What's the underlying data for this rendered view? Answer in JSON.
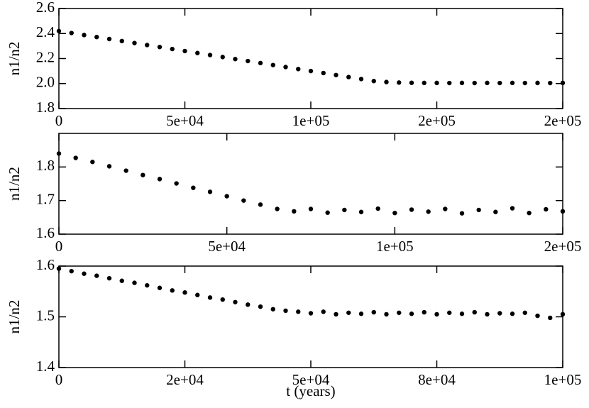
{
  "chart_data": [
    {
      "type": "scatter",
      "ylabel": "n1/n2",
      "color": "#000000",
      "xlim": [
        0,
        200000
      ],
      "xticks": [
        0,
        {
          "value": 50000,
          "label": "5e+04"
        },
        {
          "value": 100000,
          "label": "1e+05"
        },
        {
          "value": 150000,
          "label": "2e+05"
        },
        {
          "value": 200000,
          "label": "2e+05"
        }
      ],
      "ylim": [
        1.8,
        2.6
      ],
      "yticks": [
        1.8,
        {
          "value": 2,
          "label": "2.0"
        },
        2.2,
        2.4,
        2.6
      ],
      "x": [
        0,
        5000,
        10000,
        15000,
        20000,
        25000,
        30000,
        35000,
        40000,
        45000,
        50000,
        55000,
        60000,
        65000,
        70000,
        75000,
        80000,
        85000,
        90000,
        95000,
        100000,
        105000,
        110000,
        115000,
        120000,
        125000,
        130000,
        135000,
        140000,
        145000,
        150000,
        155000,
        160000,
        165000,
        170000,
        175000,
        180000,
        185000,
        190000,
        195000,
        200000
      ],
      "y": [
        2.42,
        2.404,
        2.388,
        2.372,
        2.356,
        2.34,
        2.324,
        2.308,
        2.292,
        2.276,
        2.26,
        2.244,
        2.228,
        2.212,
        2.196,
        2.18,
        2.164,
        2.148,
        2.132,
        2.116,
        2.1,
        2.084,
        2.068,
        2.052,
        2.036,
        2.02,
        2.012,
        2.008,
        2.006,
        2.005,
        2.005,
        2.004,
        2.005,
        2.004,
        2.005,
        2.004,
        2.005,
        2.004,
        2.005,
        2.004,
        2.005
      ]
    },
    {
      "type": "scatter",
      "ylabel": "n1/n2",
      "color": "#000000",
      "xlim": [
        0,
        150000
      ],
      "xticks": [
        0,
        {
          "value": 50000,
          "label": "5e+04"
        },
        {
          "value": 100000,
          "label": "1e+05"
        },
        {
          "value": 150000,
          "label": "2e+05"
        }
      ],
      "ylim": [
        1.6,
        1.9
      ],
      "yticks": [
        1.6,
        1.7,
        1.8
      ],
      "x": [
        0,
        5000,
        10000,
        15000,
        20000,
        25000,
        30000,
        35000,
        40000,
        45000,
        50000,
        55000,
        60000,
        65000,
        70000,
        75000,
        80000,
        85000,
        90000,
        95000,
        100000,
        105000,
        110000,
        115000,
        120000,
        125000,
        130000,
        135000,
        140000,
        145000,
        150000
      ],
      "y": [
        1.84,
        1.827,
        1.815,
        1.802,
        1.789,
        1.776,
        1.764,
        1.751,
        1.738,
        1.726,
        1.713,
        1.7,
        1.688,
        1.675,
        1.668,
        1.675,
        1.664,
        1.672,
        1.666,
        1.676,
        1.663,
        1.673,
        1.667,
        1.675,
        1.662,
        1.672,
        1.666,
        1.677,
        1.663,
        1.674,
        1.668
      ]
    },
    {
      "type": "scatter",
      "ylabel": "n1/n2",
      "xlabel": "t (years)",
      "color": "#000000",
      "xlim": [
        0,
        100000
      ],
      "xticks": [
        0,
        {
          "value": 25000,
          "label": "2e+04"
        },
        {
          "value": 50000,
          "label": "5e+04"
        },
        {
          "value": 75000,
          "label": "8e+04"
        },
        {
          "value": 100000,
          "label": "1e+05"
        }
      ],
      "ylim": [
        1.4,
        1.6
      ],
      "yticks": [
        1.4,
        1.5,
        1.6
      ],
      "x": [
        0,
        2500,
        5000,
        7500,
        10000,
        12500,
        15000,
        17500,
        20000,
        22500,
        25000,
        27500,
        30000,
        32500,
        35000,
        37500,
        40000,
        42500,
        45000,
        47500,
        50000,
        52500,
        55000,
        57500,
        60000,
        62500,
        65000,
        67500,
        70000,
        72500,
        75000,
        77500,
        80000,
        82500,
        85000,
        87500,
        90000,
        92500,
        95000,
        97500,
        100000
      ],
      "y": [
        1.595,
        1.59,
        1.585,
        1.581,
        1.576,
        1.571,
        1.567,
        1.562,
        1.557,
        1.552,
        1.548,
        1.543,
        1.538,
        1.534,
        1.529,
        1.524,
        1.52,
        1.515,
        1.512,
        1.51,
        1.507,
        1.51,
        1.505,
        1.508,
        1.506,
        1.509,
        1.505,
        1.508,
        1.506,
        1.509,
        1.505,
        1.508,
        1.506,
        1.509,
        1.505,
        1.507,
        1.506,
        1.508,
        1.502,
        1.498,
        1.505
      ]
    }
  ]
}
